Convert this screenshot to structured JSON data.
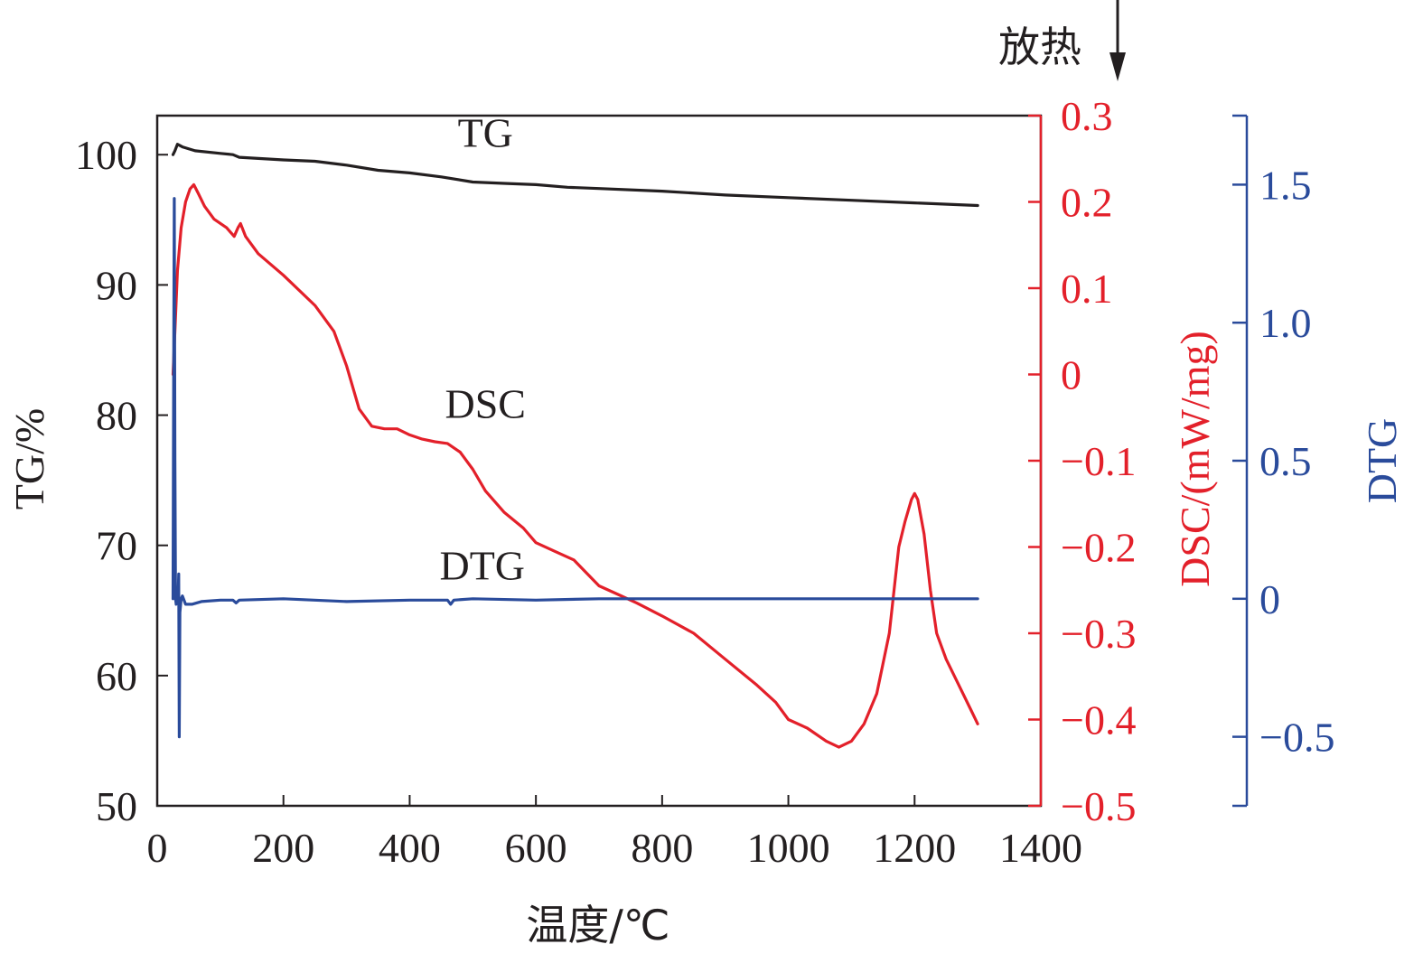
{
  "chart_data": {
    "type": "line",
    "exotherm_label": "放热",
    "xlabel": "温度/℃",
    "xlim": [
      0,
      1400
    ],
    "xticks": [
      0,
      200,
      400,
      600,
      800,
      1000,
      1200,
      1400
    ],
    "axes": {
      "tg": {
        "label": "TG/%",
        "ylim": [
          50,
          103
        ],
        "ticks": [
          50,
          60,
          70,
          80,
          90,
          100
        ],
        "tick_labels": [
          "50",
          "60",
          "70",
          "80",
          "90",
          "100"
        ],
        "color": "#231f20"
      },
      "dsc": {
        "label": "DSC/(mW/mg)",
        "ylim": [
          -0.5,
          0.3
        ],
        "ticks": [
          -0.5,
          -0.4,
          -0.3,
          -0.2,
          -0.1,
          0,
          0.1,
          0.2,
          0.3
        ],
        "tick_labels": [
          "−0.5",
          "−0.4",
          "−0.3",
          "−0.2",
          "−0.1",
          "0",
          "0.1",
          "0.2",
          "0.3"
        ],
        "color": "#e3202a"
      },
      "dtg": {
        "label": "DTG",
        "ylim": [
          -0.75,
          1.75
        ],
        "ticks": [
          -0.5,
          0,
          0.5,
          1.0,
          1.5
        ],
        "tick_labels": [
          "−0.5",
          "0",
          "0.5",
          "1.0",
          "1.5"
        ],
        "color": "#2a4b9b"
      }
    },
    "series": [
      {
        "name": "TG",
        "axis": "tg",
        "color": "#231f20",
        "label_at": [
          520,
          100.6
        ],
        "points": [
          [
            25,
            100.0
          ],
          [
            28,
            100.3
          ],
          [
            32,
            100.8
          ],
          [
            40,
            100.6
          ],
          [
            60,
            100.3
          ],
          [
            100,
            100.1
          ],
          [
            120,
            100.0
          ],
          [
            130,
            99.8
          ],
          [
            200,
            99.6
          ],
          [
            250,
            99.5
          ],
          [
            300,
            99.2
          ],
          [
            350,
            98.8
          ],
          [
            400,
            98.6
          ],
          [
            450,
            98.3
          ],
          [
            500,
            97.9
          ],
          [
            550,
            97.8
          ],
          [
            600,
            97.7
          ],
          [
            650,
            97.5
          ],
          [
            700,
            97.4
          ],
          [
            800,
            97.2
          ],
          [
            900,
            96.9
          ],
          [
            1000,
            96.7
          ],
          [
            1100,
            96.5
          ],
          [
            1200,
            96.3
          ],
          [
            1300,
            96.1
          ]
        ]
      },
      {
        "name": "DSC",
        "axis": "dsc",
        "color": "#e3202a",
        "label_at": [
          520,
          -0.05
        ],
        "points": [
          [
            25,
            0.0
          ],
          [
            28,
            0.05
          ],
          [
            32,
            0.12
          ],
          [
            38,
            0.17
          ],
          [
            45,
            0.2
          ],
          [
            52,
            0.215
          ],
          [
            58,
            0.22
          ],
          [
            65,
            0.21
          ],
          [
            75,
            0.195
          ],
          [
            90,
            0.18
          ],
          [
            110,
            0.17
          ],
          [
            122,
            0.16
          ],
          [
            128,
            0.17
          ],
          [
            132,
            0.175
          ],
          [
            140,
            0.16
          ],
          [
            160,
            0.14
          ],
          [
            200,
            0.115
          ],
          [
            250,
            0.08
          ],
          [
            280,
            0.05
          ],
          [
            300,
            0.01
          ],
          [
            320,
            -0.04
          ],
          [
            340,
            -0.06
          ],
          [
            360,
            -0.063
          ],
          [
            380,
            -0.063
          ],
          [
            400,
            -0.07
          ],
          [
            420,
            -0.075
          ],
          [
            440,
            -0.078
          ],
          [
            460,
            -0.08
          ],
          [
            480,
            -0.09
          ],
          [
            500,
            -0.11
          ],
          [
            520,
            -0.135
          ],
          [
            550,
            -0.16
          ],
          [
            580,
            -0.178
          ],
          [
            600,
            -0.195
          ],
          [
            630,
            -0.205
          ],
          [
            660,
            -0.215
          ],
          [
            680,
            -0.23
          ],
          [
            700,
            -0.245
          ],
          [
            730,
            -0.255
          ],
          [
            760,
            -0.265
          ],
          [
            800,
            -0.28
          ],
          [
            850,
            -0.3
          ],
          [
            900,
            -0.33
          ],
          [
            950,
            -0.36
          ],
          [
            980,
            -0.38
          ],
          [
            1000,
            -0.4
          ],
          [
            1030,
            -0.41
          ],
          [
            1060,
            -0.425
          ],
          [
            1080,
            -0.432
          ],
          [
            1100,
            -0.425
          ],
          [
            1120,
            -0.405
          ],
          [
            1140,
            -0.37
          ],
          [
            1160,
            -0.3
          ],
          [
            1175,
            -0.2
          ],
          [
            1185,
            -0.17
          ],
          [
            1195,
            -0.145
          ],
          [
            1200,
            -0.138
          ],
          [
            1205,
            -0.145
          ],
          [
            1215,
            -0.185
          ],
          [
            1225,
            -0.25
          ],
          [
            1235,
            -0.3
          ],
          [
            1250,
            -0.33
          ],
          [
            1270,
            -0.36
          ],
          [
            1290,
            -0.39
          ],
          [
            1300,
            -0.405
          ]
        ]
      },
      {
        "name": "DTG",
        "axis": "dtg",
        "color": "#2a4b9b",
        "label_at": [
          515,
          0.07
        ],
        "points": [
          [
            25,
            0.0
          ],
          [
            26,
            0.8
          ],
          [
            27,
            1.45
          ],
          [
            28,
            0.5
          ],
          [
            29,
            0.0
          ],
          [
            30,
            -0.02
          ],
          [
            33,
            0.0
          ],
          [
            34,
            0.09
          ],
          [
            35,
            -0.5
          ],
          [
            36,
            -0.05
          ],
          [
            38,
            0.0
          ],
          [
            40,
            0.01
          ],
          [
            45,
            -0.02
          ],
          [
            55,
            -0.02
          ],
          [
            70,
            -0.01
          ],
          [
            100,
            -0.005
          ],
          [
            120,
            -0.005
          ],
          [
            125,
            -0.015
          ],
          [
            130,
            -0.005
          ],
          [
            200,
            0.0
          ],
          [
            300,
            -0.01
          ],
          [
            400,
            -0.005
          ],
          [
            460,
            -0.005
          ],
          [
            465,
            -0.02
          ],
          [
            470,
            -0.005
          ],
          [
            500,
            0.0
          ],
          [
            600,
            -0.005
          ],
          [
            700,
            0.0
          ],
          [
            800,
            0.0
          ],
          [
            900,
            0.0
          ],
          [
            1000,
            0.0
          ],
          [
            1100,
            0.0
          ],
          [
            1200,
            0.0
          ],
          [
            1300,
            0.0
          ]
        ]
      }
    ]
  }
}
